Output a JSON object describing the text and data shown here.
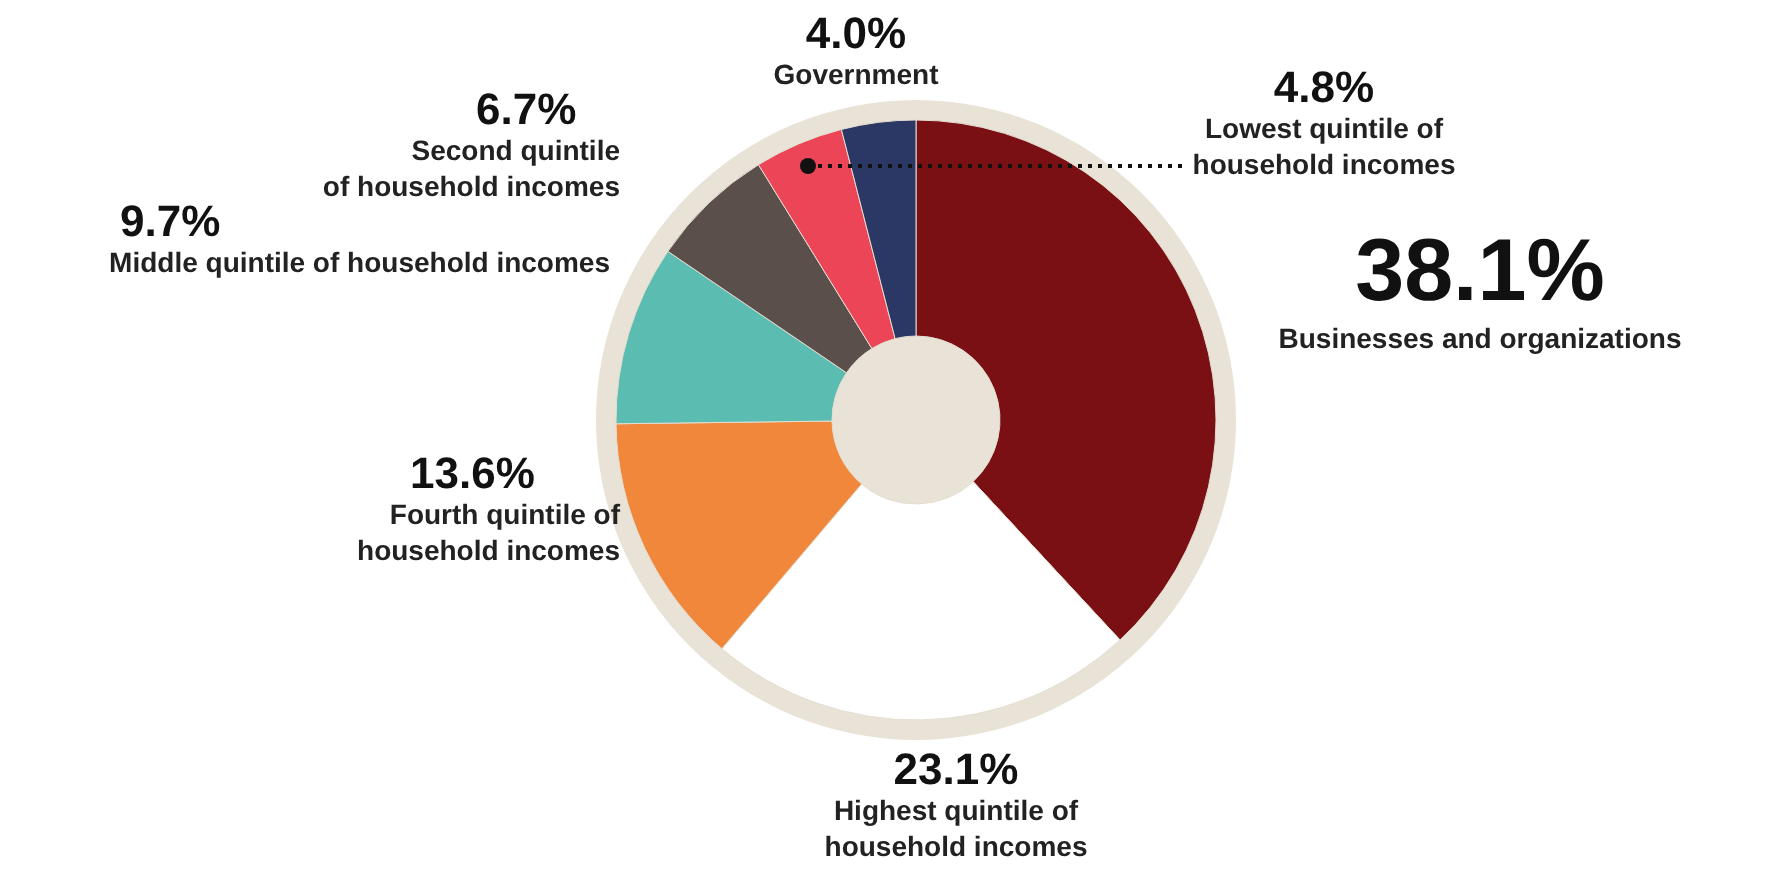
{
  "chart_data": {
    "type": "donut",
    "categories": [
      "Businesses and organizations",
      "Highest quintile of household incomes",
      "Fourth quintile of household incomes",
      "Middle quintile of household incomes",
      "Second quintile of household incomes",
      "Lowest quintile of household incomes",
      "Government"
    ],
    "values": [
      38.1,
      23.1,
      13.6,
      9.7,
      6.7,
      4.8,
      4.0
    ],
    "colors": [
      "#7a1014",
      "#ffffff",
      "#f0873a",
      "#5bbdb1",
      "#5a4f4b",
      "#ec4558",
      "#2b3866"
    ],
    "value_labels": [
      "38.1%",
      "23.1%",
      "13.6%",
      "9.7%",
      "6.7%",
      "4.8%",
      "4.0%"
    ],
    "legend": false
  }
}
